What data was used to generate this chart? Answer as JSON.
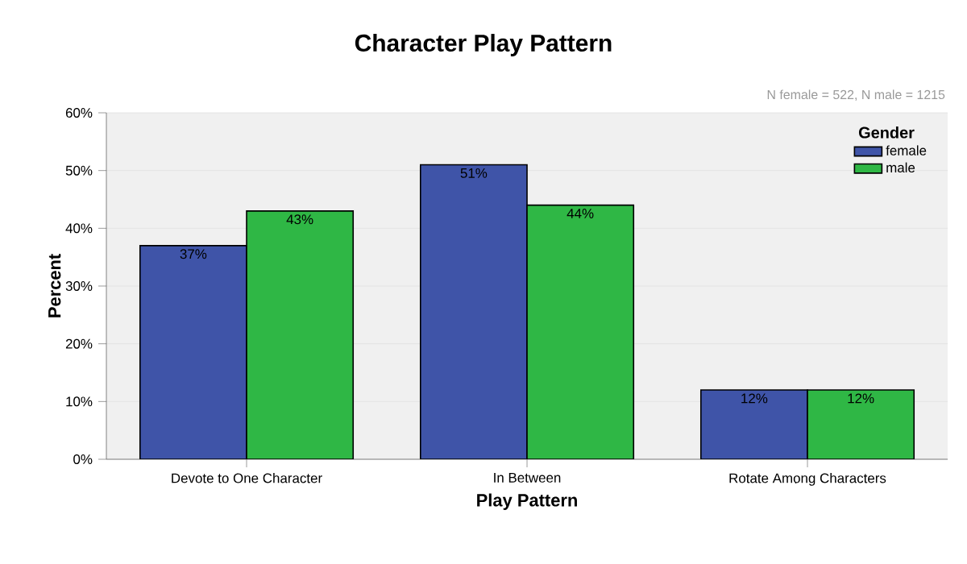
{
  "chart_data": {
    "type": "bar",
    "title": "Character Play Pattern",
    "xlabel": "Play Pattern",
    "ylabel": "Percent",
    "legend_title": "Gender",
    "annotations": [
      "N female = 522, N male = 1215"
    ],
    "categories": [
      "Devote to One Character",
      "In Between",
      "Rotate Among Characters"
    ],
    "series": [
      {
        "name": "female",
        "color": "#3f54a8",
        "values": [
          37,
          51,
          12
        ],
        "value_labels": [
          "37%",
          "51%",
          "12%"
        ]
      },
      {
        "name": "male",
        "color": "#2fb745",
        "values": [
          43,
          44,
          12
        ],
        "value_labels": [
          "43%",
          "44%",
          "12%"
        ]
      }
    ],
    "ylim": [
      0,
      60
    ],
    "yticks": [
      {
        "value": 0,
        "label": "0%"
      },
      {
        "value": 10,
        "label": "10%"
      },
      {
        "value": 20,
        "label": "20%"
      },
      {
        "value": 30,
        "label": "30%"
      },
      {
        "value": 40,
        "label": "40%"
      },
      {
        "value": 50,
        "label": "50%"
      },
      {
        "value": 60,
        "label": "60%"
      }
    ],
    "grid": "y",
    "legend": "top right"
  }
}
